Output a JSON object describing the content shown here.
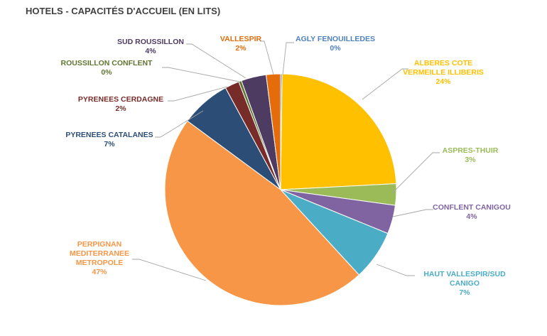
{
  "chart_data": {
    "type": "pie",
    "title": "HOTELS - CAPACITÉS D'ACCUEIL (EN LITS)",
    "slices": [
      {
        "label": "AGLY FENOUILLEDES",
        "value": 0.2,
        "pct_label": "0%",
        "color": "#4f81bd"
      },
      {
        "label": "ALBERES COTE VERMEILLE ILLIBERIS",
        "value": 24,
        "pct_label": "24%",
        "color": "#ffc000"
      },
      {
        "label": "ASPRES-THUIR",
        "value": 3,
        "pct_label": "3%",
        "color": "#9bbb59"
      },
      {
        "label": "CONFLENT CANIGOU",
        "value": 4,
        "pct_label": "4%",
        "color": "#8064a2"
      },
      {
        "label": "HAUT VALLESPIR/SUD CANIGO",
        "value": 7,
        "pct_label": "7%",
        "color": "#4bacc6"
      },
      {
        "label": "PERPIGNAN MEDITERRANEE METROPOLE",
        "value": 47,
        "pct_label": "47%",
        "color": "#f79646"
      },
      {
        "label": "PYRENEES CATALANES",
        "value": 7,
        "pct_label": "7%",
        "color": "#2c4d75"
      },
      {
        "label": "PYRENEES CERDAGNE",
        "value": 2,
        "pct_label": "2%",
        "color": "#772c2a"
      },
      {
        "label": "ROUSSILLON CONFLENT",
        "value": 0.4,
        "pct_label": "0%",
        "color": "#5f7530"
      },
      {
        "label": "SUD ROUSSILLON",
        "value": 3.5,
        "pct_label": "4%",
        "color": "#4d3b62"
      },
      {
        "label": "VALLESPIR",
        "value": 2,
        "pct_label": "2%",
        "color": "#e46c0a"
      }
    ],
    "start_angle_deg": 0,
    "direction": "clockwise",
    "legend": "none",
    "labels_outside_with_leader_lines": true
  }
}
